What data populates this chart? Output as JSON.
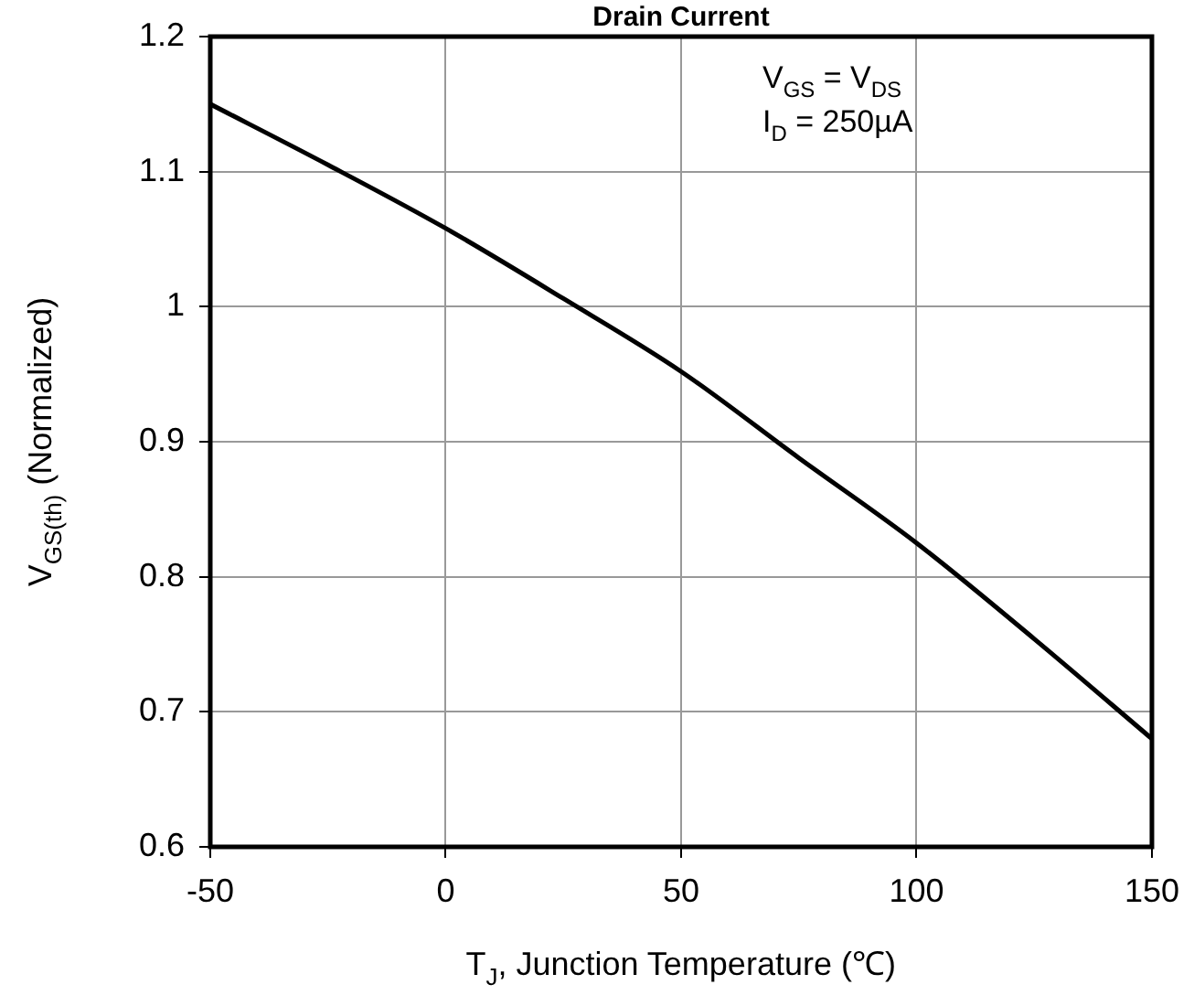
{
  "chart_data": {
    "type": "line",
    "title": "Drain Current",
    "xlabel": "T$_{J}$, Junction Temperature (℃)",
    "ylabel": "V$_{GS(th)}$ (Normalized)",
    "annotations": [
      "V$_{GS}$ = V$_{DS}$",
      "I$_{D}$ = 250µA"
    ],
    "x": [
      -50,
      -25,
      0,
      25,
      50,
      75,
      100,
      125,
      150
    ],
    "series": [
      {
        "color": "#000000",
        "values": [
          1.15,
          1.105,
          1.058,
          1.006,
          0.952,
          0.888,
          0.825,
          0.754,
          0.68
        ]
      }
    ],
    "xlim": [
      -50,
      150
    ],
    "xticks": [
      -50,
      0,
      50,
      100,
      150
    ],
    "ylim": [
      0.6,
      1.2
    ],
    "yticks": [
      0.6,
      0.7,
      0.8,
      0.9,
      1,
      1.1,
      1.2
    ],
    "grid": true,
    "legend": false,
    "marker": "none",
    "line_style": "solid"
  }
}
